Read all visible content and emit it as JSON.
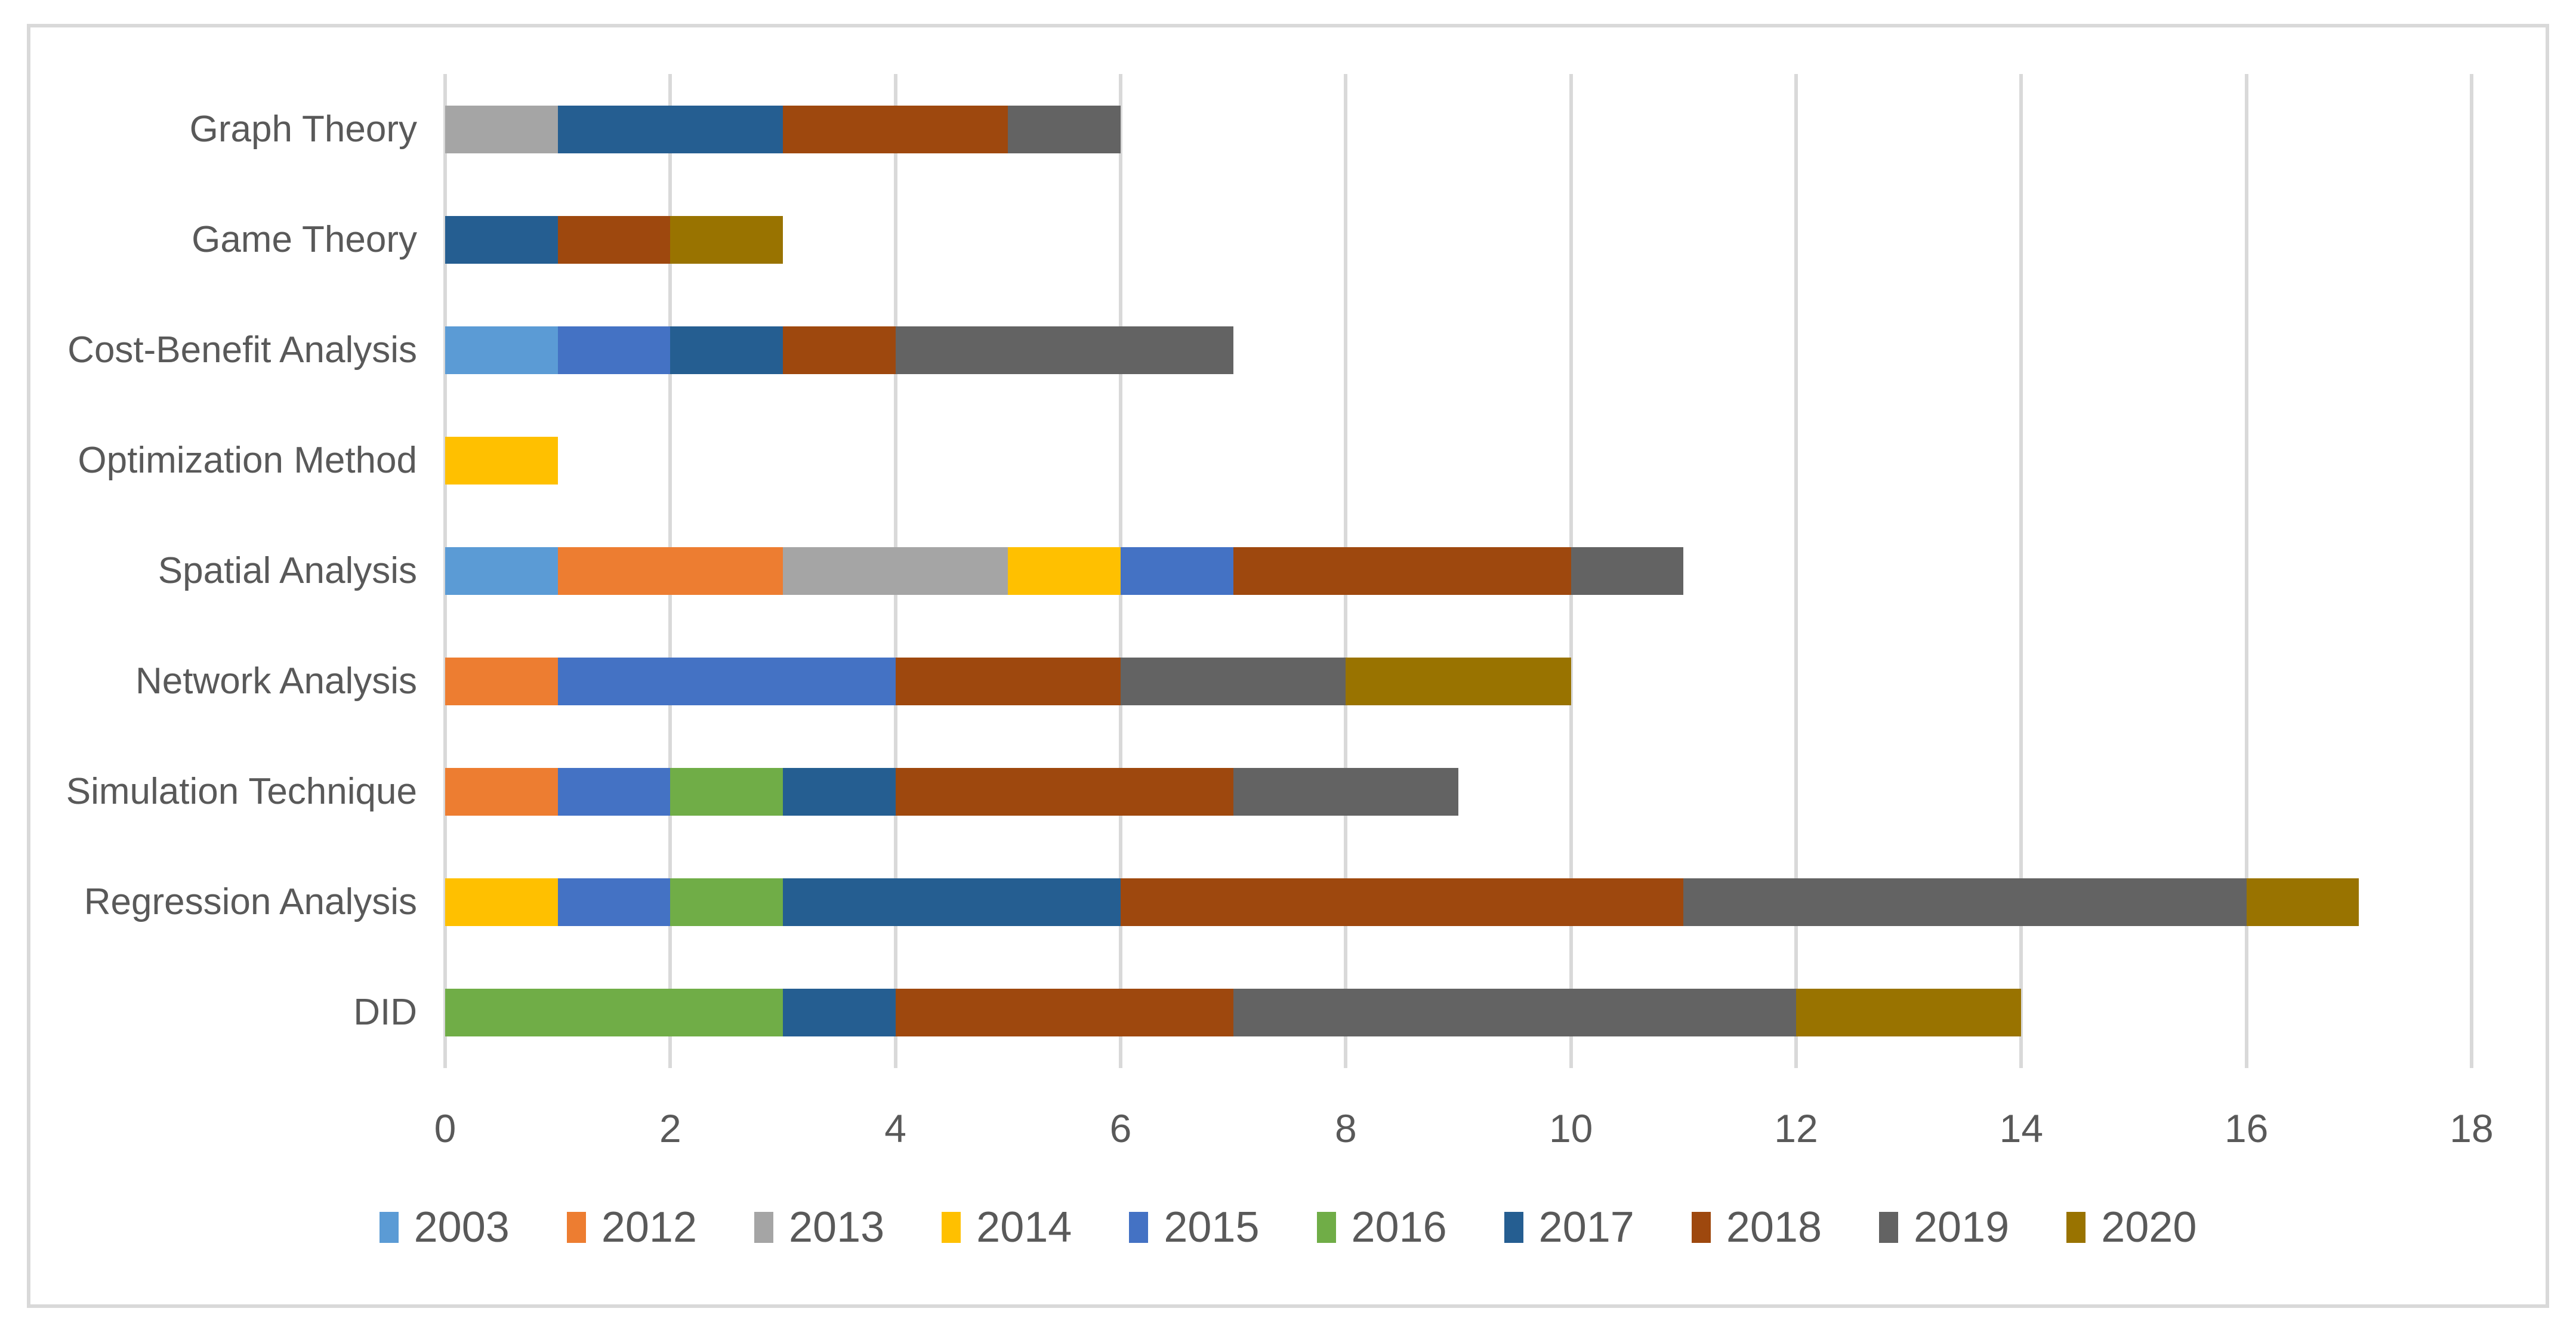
{
  "chart_data": {
    "type": "bar",
    "orientation": "horizontal",
    "stacked": true,
    "title": "",
    "xlabel": "",
    "ylabel": "",
    "xlim": [
      0,
      18
    ],
    "x_ticks": [
      0,
      2,
      4,
      6,
      8,
      10,
      12,
      14,
      16,
      18
    ],
    "grid": "vertical",
    "legend_position": "bottom",
    "categories_top_to_bottom": [
      "Graph Theory",
      "Game Theory",
      "Cost-Benefit Analysis",
      "Optimization Method",
      "Spatial Analysis",
      "Network Analysis",
      "Simulation Technique",
      "Regression Analysis",
      "DID"
    ],
    "series": [
      {
        "name": "2003",
        "color": "#5B9BD5",
        "values": [
          0,
          0,
          1,
          0,
          1,
          0,
          0,
          0,
          0
        ]
      },
      {
        "name": "2012",
        "color": "#ED7D31",
        "values": [
          0,
          0,
          0,
          0,
          2,
          1,
          1,
          0,
          0
        ]
      },
      {
        "name": "2013",
        "color": "#A5A5A5",
        "values": [
          1,
          0,
          0,
          0,
          2,
          0,
          0,
          0,
          0
        ]
      },
      {
        "name": "2014",
        "color": "#FFC000",
        "values": [
          0,
          0,
          0,
          1,
          1,
          0,
          0,
          1,
          0
        ]
      },
      {
        "name": "2015",
        "color": "#4472C4",
        "values": [
          0,
          0,
          1,
          0,
          1,
          3,
          1,
          1,
          0
        ]
      },
      {
        "name": "2016",
        "color": "#70AD47",
        "values": [
          0,
          0,
          0,
          0,
          0,
          0,
          1,
          1,
          3
        ]
      },
      {
        "name": "2017",
        "color": "#255E91",
        "values": [
          2,
          1,
          1,
          0,
          0,
          0,
          1,
          3,
          1
        ]
      },
      {
        "name": "2018",
        "color": "#9E480E",
        "values": [
          2,
          1,
          1,
          0,
          3,
          2,
          3,
          5,
          3
        ]
      },
      {
        "name": "2019",
        "color": "#636363",
        "values": [
          1,
          0,
          3,
          0,
          1,
          2,
          2,
          5,
          5
        ]
      },
      {
        "name": "2020",
        "color": "#997300",
        "values": [
          0,
          1,
          0,
          0,
          0,
          2,
          0,
          1,
          2
        ]
      }
    ],
    "category_totals": [
      6,
      3,
      7,
      1,
      11,
      10,
      9,
      17,
      14
    ]
  },
  "style": {
    "background": "#FFFFFF",
    "frame_border_color": "#D9D9D9",
    "gridline_color": "#D9D9D9",
    "text_color": "#595959"
  }
}
